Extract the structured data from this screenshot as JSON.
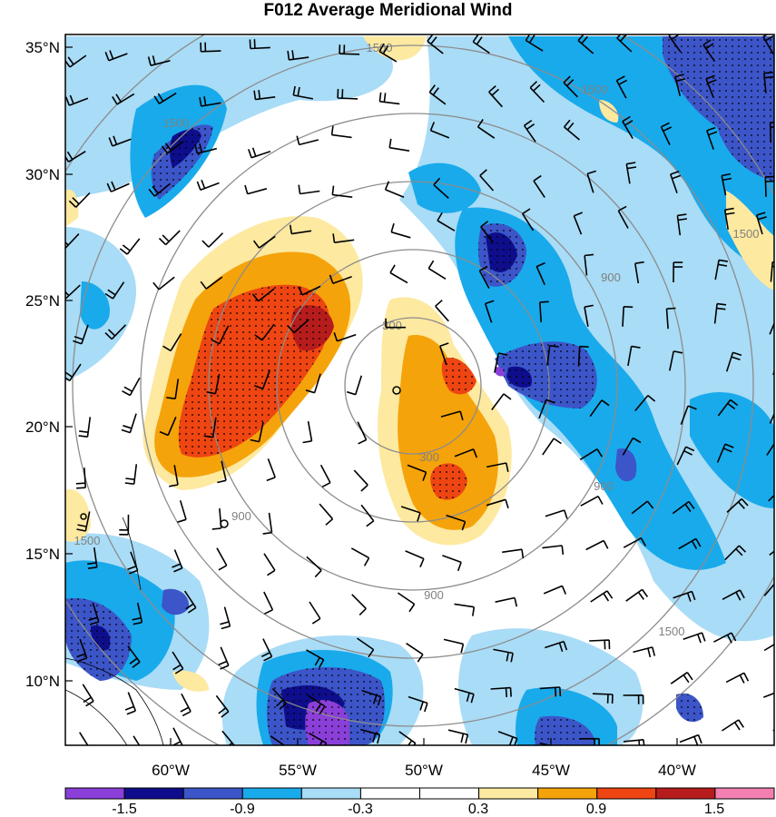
{
  "title": "F012 Average Meridional Wind",
  "lat_labels": [
    "35°N",
    "30°N",
    "25°N",
    "20°N",
    "15°N",
    "10°N"
  ],
  "lon_labels": [
    "60°W",
    "55°W",
    "50°W",
    "45°W",
    "40°W"
  ],
  "range_ring_labels": [
    "300",
    "300",
    "900",
    "900",
    "900",
    "900",
    "1500",
    "1500",
    "1500",
    "1500",
    "1500",
    "1500"
  ],
  "colorbar": {
    "labels": [
      "-1.5",
      "-0.9",
      "-0.3",
      "0.3",
      "0.9",
      "1.5"
    ],
    "colors": [
      "#8b3fd9",
      "#0e0e8c",
      "#3c55c8",
      "#19aaeb",
      "#a9dcf6",
      "#ffffff",
      "#ffffff",
      "#fde9a0",
      "#f5a30a",
      "#ee4512",
      "#b71c1c",
      "#f47fb1"
    ]
  },
  "colors": {
    "pos_light": "#fde9a0",
    "pos_orange": "#f5a30a",
    "pos_red": "#ee4512",
    "pos_darkred": "#b71c1c",
    "neg_light": "#a9dcf6",
    "neg_mid": "#19aaeb",
    "neg_blue": "#3c55c8",
    "neg_navy": "#0e0e8c",
    "neg_purple": "#8b3fd9",
    "ring": "#8c8c8c"
  }
}
